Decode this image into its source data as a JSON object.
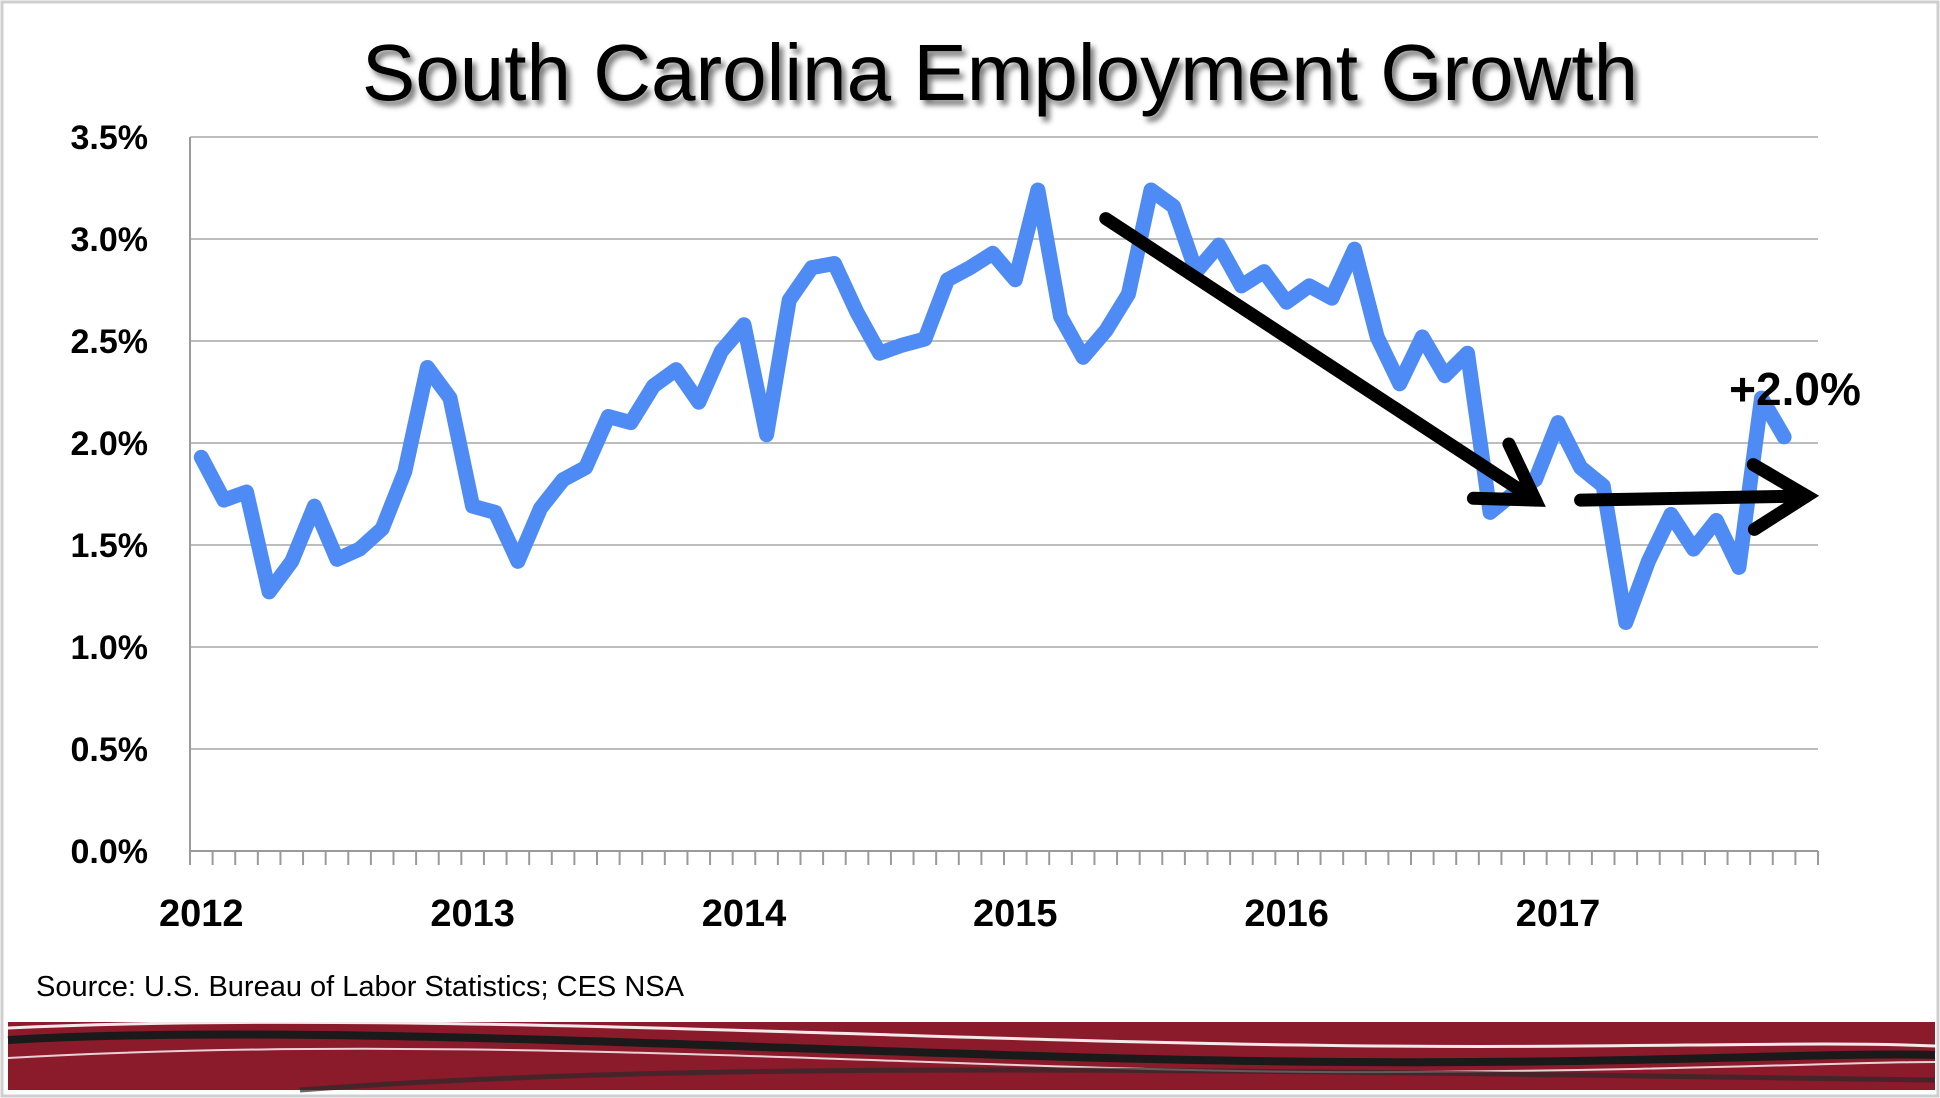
{
  "slide": {
    "title": "South Carolina Employment Growth",
    "source": "Source: U.S. Bureau of Labor Statistics; CES NSA"
  },
  "colors": {
    "series": "#4F8BF5",
    "footer_band": "#8B1A2B",
    "arrows": "#000000"
  },
  "chart_data": {
    "type": "line",
    "title": "South Carolina Employment Growth",
    "xlabel": "",
    "ylabel": "",
    "x_start": "2012-01",
    "x_frequency": "monthly",
    "year_labels": [
      "2012",
      "2013",
      "2014",
      "2015",
      "2016",
      "2017"
    ],
    "y_tick_labels": [
      "0.0%",
      "0.5%",
      "1.0%",
      "1.5%",
      "2.0%",
      "2.5%",
      "3.0%",
      "3.5%"
    ],
    "ylim": [
      0,
      3.5
    ],
    "y_unit": "percent",
    "grid": true,
    "series": [
      {
        "values": [
          1.93,
          1.72,
          1.76,
          1.27,
          1.42,
          1.69,
          1.43,
          1.48,
          1.58,
          1.86,
          2.37,
          2.22,
          1.69,
          1.66,
          1.42,
          1.68,
          1.82,
          1.88,
          2.13,
          2.1,
          2.28,
          2.36,
          2.2,
          2.45,
          2.58,
          2.04,
          2.7,
          2.86,
          2.88,
          2.64,
          2.44,
          2.48,
          2.51,
          2.8,
          2.86,
          2.93,
          2.8,
          3.24,
          2.62,
          2.42,
          2.55,
          2.73,
          3.24,
          3.16,
          2.84,
          2.97,
          2.77,
          2.84,
          2.69,
          2.77,
          2.71,
          2.95,
          2.52,
          2.29,
          2.52,
          2.33,
          2.44,
          1.66,
          1.75,
          1.82,
          2.1,
          1.88,
          1.79,
          1.12,
          1.42,
          1.65,
          1.48,
          1.62,
          1.39,
          2.22,
          2.03
        ]
      }
    ],
    "annotations": [
      {
        "type": "arrow",
        "from": [
          "2015-05",
          3.1
        ],
        "to": [
          "2016-12",
          1.72
        ]
      },
      {
        "type": "arrow",
        "from": [
          "2017-02",
          1.72
        ],
        "to": [
          "2017-12",
          1.74
        ]
      },
      {
        "type": "text",
        "text": "+2.0%"
      }
    ]
  }
}
